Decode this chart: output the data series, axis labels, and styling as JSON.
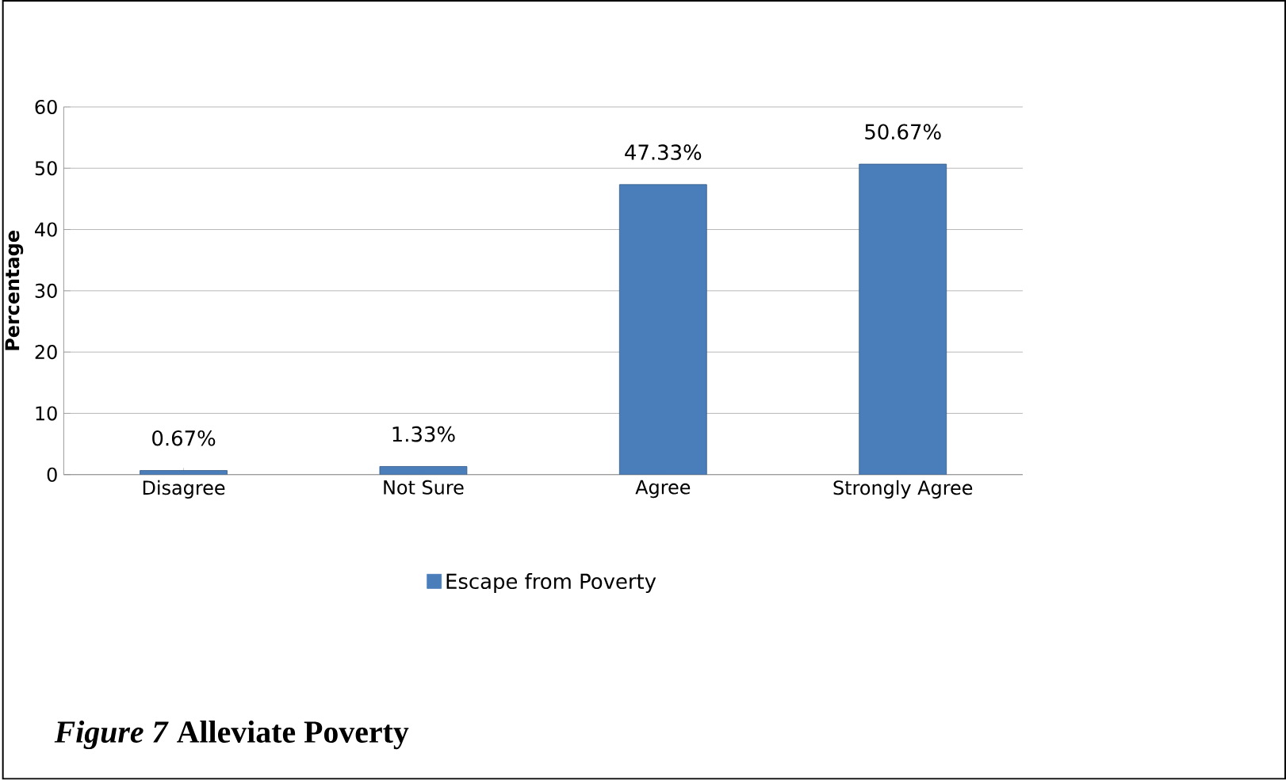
{
  "chart_data": {
    "type": "bar",
    "ylabel": "Percentage",
    "categories": [
      "Disagree",
      "Not Sure",
      "Agree",
      "Strongly Agree"
    ],
    "series": [
      {
        "name": "Escape from Poverty",
        "color": "#4a7ebb",
        "values": [
          0.67,
          1.33,
          47.33,
          50.67
        ]
      }
    ],
    "value_labels": [
      "0.67%",
      "1.33%",
      "47.33%",
      "50.67%"
    ],
    "ylim": [
      0,
      60
    ],
    "yticks": [
      0,
      10,
      20,
      30,
      40,
      50,
      60
    ],
    "grid": "y",
    "legend": "bottom",
    "annotations": [
      "*Figure 7*   Alleviate Poverty"
    ]
  }
}
